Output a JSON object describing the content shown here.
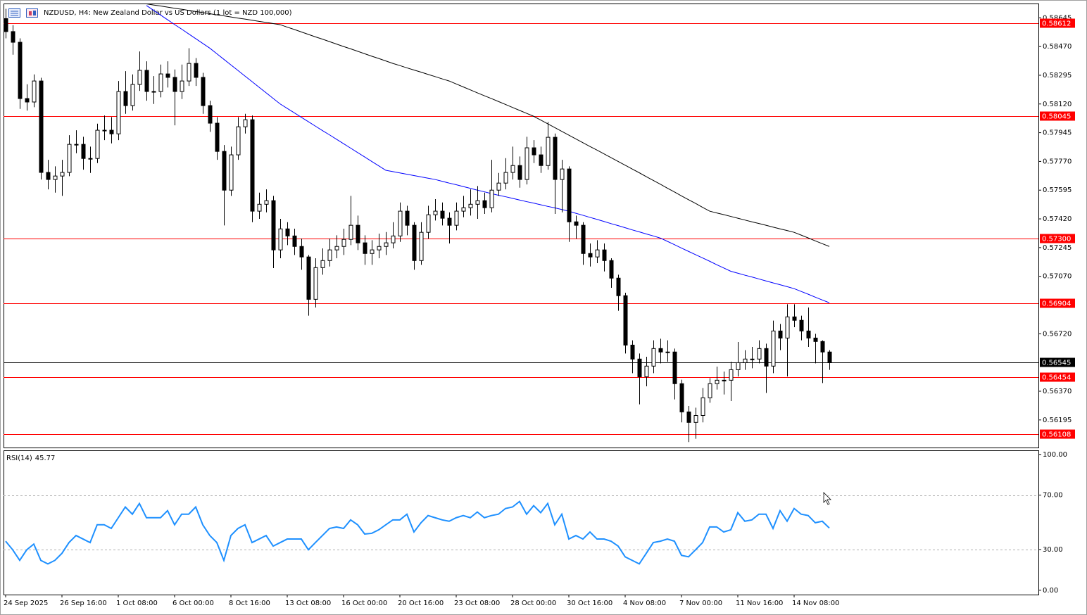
{
  "chart_data": [
    {
      "type": "candlestick",
      "title": "NZDUSD, H4:  New Zealand Dollar vs US Dollars (1 lot = NZD 100,000)",
      "categories": [
        "24 Sep 2025",
        null,
        null,
        null,
        null,
        null,
        null,
        null,
        "26 Sep 16:00",
        null,
        null,
        null,
        null,
        null,
        null,
        null,
        "1 Oct 08:00",
        null,
        null,
        null,
        null,
        null,
        null,
        null,
        "6 Oct 00:00",
        null,
        null,
        null,
        null,
        null,
        null,
        null,
        "8 Oct 16:00",
        null,
        null,
        null,
        null,
        null,
        null,
        null,
        "13 Oct 08:00",
        null,
        null,
        null,
        null,
        null,
        null,
        null,
        "16 Oct 00:00",
        null,
        null,
        null,
        null,
        null,
        null,
        null,
        "20 Oct 16:00",
        null,
        null,
        null,
        null,
        null,
        null,
        null,
        "23 Oct 08:00",
        null,
        null,
        null,
        null,
        null,
        null,
        null,
        "28 Oct 00:00",
        null,
        null,
        null,
        null,
        null,
        null,
        null,
        "30 Oct 16:00",
        null,
        null,
        null,
        null,
        null,
        null,
        null,
        "4 Nov 08:00",
        null,
        null,
        null,
        null,
        null,
        null,
        null,
        "7 Nov 00:00",
        null,
        null,
        null,
        null,
        null,
        null,
        null,
        "11 Nov 16:00",
        null,
        null,
        null,
        null,
        null,
        null,
        null,
        "14 Nov 08:00",
        null,
        null,
        null,
        null,
        null
      ],
      "open": [
        0.5864,
        0.58561,
        0.58496,
        0.58153,
        0.58132,
        0.5826,
        0.57703,
        0.5766,
        0.57681,
        0.57703,
        0.57874,
        0.57874,
        0.57788,
        0.57788,
        0.5796,
        0.5796,
        0.57938,
        0.58196,
        0.5811,
        0.58239,
        0.58325,
        0.58196,
        0.58196,
        0.58303,
        0.58282,
        0.58196,
        0.5826,
        0.58367,
        0.58282,
        0.5811,
        0.58003,
        0.57831,
        0.57595,
        0.5781,
        0.57981,
        0.58024,
        0.57467,
        0.57509,
        0.57531,
        0.57231,
        0.57359,
        0.57316,
        0.57252,
        0.57188,
        0.5693,
        0.57123,
        0.57166,
        0.57231,
        0.57252,
        0.57295,
        0.57381,
        0.57274,
        0.57209,
        0.57231,
        0.57252,
        0.57274,
        0.57316,
        0.57467,
        0.57381,
        0.57166,
        0.57338,
        0.57445,
        0.57467,
        0.57424,
        0.57381,
        0.57467,
        0.57488,
        0.57509,
        0.57531,
        0.57488,
        0.57595,
        0.57638,
        0.57703,
        0.57745,
        0.5766,
        0.57853,
        0.5781,
        0.57745,
        0.57917,
        0.5766,
        0.57724,
        0.57402,
        0.57381,
        0.57209,
        0.57188,
        0.57231,
        0.57166,
        0.57059,
        0.56952,
        0.56651,
        0.56566,
        0.56458,
        0.56523,
        0.5663,
        0.56609,
        0.56609,
        0.56416,
        0.56244,
        0.5618,
        0.56222,
        0.5633,
        0.56416,
        0.56437,
        0.56437,
        0.56501,
        0.56544,
        0.56566,
        0.56566,
        0.5663,
        0.56523,
        0.56737,
        0.56694,
        0.56823,
        0.56802,
        0.56737,
        0.56694,
        0.56673,
        0.56609
      ],
      "high": [
        0.587,
        0.586,
        0.5852,
        0.5824,
        0.583,
        0.5828,
        0.5778,
        0.5774,
        0.5778,
        0.5793,
        0.5796,
        0.5792,
        0.5786,
        0.58,
        0.5805,
        0.5804,
        0.5826,
        0.5832,
        0.583,
        0.5844,
        0.5838,
        0.5829,
        0.5836,
        0.5838,
        0.5833,
        0.5836,
        0.5846,
        0.584,
        0.5831,
        0.5814,
        0.5804,
        0.5787,
        0.5786,
        0.5804,
        0.5806,
        0.5805,
        0.5758,
        0.576,
        0.5756,
        0.5742,
        0.574,
        0.5736,
        0.573,
        0.572,
        0.5718,
        0.5724,
        0.573,
        0.5732,
        0.5736,
        0.5756,
        0.5744,
        0.5732,
        0.5729,
        0.5733,
        0.5734,
        0.574,
        0.5752,
        0.575,
        0.574,
        0.574,
        0.575,
        0.5754,
        0.5752,
        0.5746,
        0.5752,
        0.5756,
        0.576,
        0.5762,
        0.5758,
        0.5778,
        0.577,
        0.5779,
        0.5786,
        0.578,
        0.5792,
        0.579,
        0.5786,
        0.5801,
        0.5794,
        0.5778,
        0.5774,
        0.5744,
        0.574,
        0.5727,
        0.5729,
        0.5727,
        0.5718,
        0.5708,
        0.5697,
        0.5668,
        0.566,
        0.5658,
        0.5668,
        0.5669,
        0.5668,
        0.5663,
        0.5644,
        0.5628,
        0.5627,
        0.5639,
        0.5645,
        0.5652,
        0.5649,
        0.5655,
        0.5667,
        0.5662,
        0.5664,
        0.5668,
        0.5666,
        0.568,
        0.5678,
        0.569,
        0.569,
        0.5683,
        0.5688,
        0.5672,
        0.5668,
        0.5662
      ],
      "low": [
        0.5852,
        0.5842,
        0.5809,
        0.5808,
        0.581,
        0.5766,
        0.576,
        0.5758,
        0.5756,
        0.5768,
        0.5782,
        0.5772,
        0.577,
        0.5776,
        0.579,
        0.5788,
        0.579,
        0.5806,
        0.5808,
        0.582,
        0.5814,
        0.5812,
        0.5816,
        0.5822,
        0.5799,
        0.5815,
        0.5823,
        0.5823,
        0.5806,
        0.5795,
        0.5778,
        0.5738,
        0.5756,
        0.5778,
        0.5794,
        0.574,
        0.5742,
        0.5746,
        0.5712,
        0.5718,
        0.5726,
        0.572,
        0.5711,
        0.5683,
        0.5688,
        0.5708,
        0.5713,
        0.5718,
        0.572,
        0.5726,
        0.5723,
        0.5714,
        0.5714,
        0.5718,
        0.572,
        0.5724,
        0.5728,
        0.5732,
        0.5711,
        0.5714,
        0.573,
        0.5741,
        0.5738,
        0.5727,
        0.5735,
        0.5743,
        0.5744,
        0.5742,
        0.5745,
        0.5746,
        0.5756,
        0.576,
        0.5766,
        0.5761,
        0.5763,
        0.5776,
        0.577,
        0.5772,
        0.5745,
        0.5746,
        0.5728,
        0.573,
        0.5714,
        0.5713,
        0.5715,
        0.571,
        0.57,
        0.5686,
        0.566,
        0.5648,
        0.5629,
        0.564,
        0.5648,
        0.5654,
        0.5655,
        0.5632,
        0.5618,
        0.5606,
        0.5608,
        0.5618,
        0.563,
        0.5638,
        0.5635,
        0.5631,
        0.5646,
        0.565,
        0.5651,
        0.5654,
        0.5636,
        0.5648,
        0.5662,
        0.5646,
        0.5676,
        0.5668,
        0.5664,
        0.5654,
        0.5642,
        0.565
      ],
      "close": [
        0.58561,
        0.58496,
        0.58153,
        0.58132,
        0.5826,
        0.57703,
        0.5766,
        0.57681,
        0.57703,
        0.57874,
        0.57874,
        0.57788,
        0.57788,
        0.5796,
        0.5796,
        0.57938,
        0.58196,
        0.5811,
        0.58239,
        0.58325,
        0.58196,
        0.58196,
        0.58303,
        0.58282,
        0.58196,
        0.5826,
        0.58367,
        0.58282,
        0.5811,
        0.58003,
        0.57831,
        0.57595,
        0.5781,
        0.57981,
        0.58024,
        0.57467,
        0.57509,
        0.57531,
        0.57231,
        0.57359,
        0.57316,
        0.57252,
        0.57188,
        0.5693,
        0.57123,
        0.57166,
        0.57231,
        0.57252,
        0.57295,
        0.57381,
        0.57274,
        0.57209,
        0.57231,
        0.57252,
        0.57274,
        0.57316,
        0.57467,
        0.57381,
        0.57166,
        0.57338,
        0.57445,
        0.57467,
        0.57424,
        0.57381,
        0.57467,
        0.57488,
        0.57509,
        0.57531,
        0.57488,
        0.57595,
        0.57638,
        0.57703,
        0.57745,
        0.5766,
        0.57853,
        0.5781,
        0.57745,
        0.57917,
        0.5766,
        0.57724,
        0.57402,
        0.57381,
        0.57209,
        0.57188,
        0.57231,
        0.57166,
        0.57059,
        0.56952,
        0.56651,
        0.56566,
        0.56458,
        0.56523,
        0.5663,
        0.56609,
        0.56609,
        0.56416,
        0.56244,
        0.5618,
        0.56222,
        0.5633,
        0.56416,
        0.56437,
        0.56437,
        0.56501,
        0.56544,
        0.56566,
        0.56566,
        0.5663,
        0.56523,
        0.56737,
        0.56694,
        0.56823,
        0.56802,
        0.56737,
        0.56694,
        0.56673,
        0.56609,
        0.56545
      ],
      "up_color": "#ffffff",
      "down_color": "#000000",
      "overlays": [
        {
          "color": "#0000ff",
          "values": [
            null,
            null,
            null,
            null,
            null,
            null,
            null,
            null,
            null,
            null,
            null,
            null,
            null,
            null,
            null,
            null,
            null,
            null,
            null,
            null,
            0.5872,
            0.58691,
            0.58662,
            0.58633,
            0.58604,
            0.58576,
            0.58547,
            0.58518,
            0.58489,
            0.5846,
            0.58426,
            0.58392,
            0.58358,
            0.58324,
            0.5829,
            0.58256,
            0.58222,
            0.58188,
            0.58154,
            0.5812,
            0.58093,
            0.58066,
            0.58039,
            0.58012,
            0.57985,
            0.57958,
            0.57932,
            0.57905,
            0.57878,
            0.57851,
            0.57824,
            0.57797,
            0.5777,
            0.57743,
            0.57716,
            0.57708,
            0.577,
            0.57692,
            0.57684,
            0.57676,
            0.57668,
            0.5766,
            0.57649,
            0.57638,
            0.57628,
            0.57617,
            0.57606,
            0.57595,
            0.57585,
            0.57574,
            0.57564,
            0.57555,
            0.57545,
            0.57535,
            0.57525,
            0.57516,
            0.57506,
            0.57496,
            0.57487,
            0.57477,
            0.57467,
            0.57454,
            0.57442,
            0.57429,
            0.57417,
            0.57404,
            0.57391,
            0.57379,
            0.57366,
            0.57353,
            0.57341,
            0.57328,
            0.57316,
            0.57303,
            0.57283,
            0.57263,
            0.57242,
            0.57222,
            0.57202,
            0.57182,
            0.57162,
            0.57141,
            0.57121,
            0.57101,
            0.57089,
            0.57077,
            0.57066,
            0.57054,
            0.57042,
            0.5703,
            0.57019,
            0.57007,
            0.56995,
            0.56978,
            0.56961,
            0.56943,
            0.56926,
            0.56909
          ]
        },
        {
          "color": "#000000",
          "values": [
            null,
            null,
            null,
            null,
            null,
            null,
            null,
            null,
            null,
            null,
            null,
            null,
            null,
            null,
            null,
            null,
            null,
            null,
            null,
            null,
            0.5873,
            0.58723,
            0.58717,
            0.5871,
            0.58703,
            0.58697,
            0.5869,
            0.58683,
            0.58677,
            0.5867,
            0.58663,
            0.58657,
            0.5865,
            0.58643,
            0.58637,
            0.5863,
            0.58623,
            0.58617,
            0.5861,
            0.58603,
            0.58588,
            0.58574,
            0.58559,
            0.58544,
            0.58529,
            0.58515,
            0.585,
            0.58485,
            0.5847,
            0.58456,
            0.58441,
            0.58426,
            0.58411,
            0.58397,
            0.58382,
            0.58367,
            0.58354,
            0.5834,
            0.58327,
            0.58314,
            0.583,
            0.58287,
            0.58273,
            0.5826,
            0.58242,
            0.58224,
            0.58206,
            0.58188,
            0.5817,
            0.58153,
            0.58135,
            0.58117,
            0.58099,
            0.58081,
            0.58063,
            0.58045,
            0.58022,
            0.57999,
            0.57976,
            0.57953,
            0.5793,
            0.57907,
            0.57884,
            0.57861,
            0.57839,
            0.57816,
            0.57793,
            0.5777,
            0.57747,
            0.57724,
            0.57701,
            0.57677,
            0.57654,
            0.57631,
            0.57607,
            0.57584,
            0.5756,
            0.57537,
            0.57514,
            0.5749,
            0.57467,
            0.57456,
            0.57446,
            0.57435,
            0.57424,
            0.57413,
            0.57402,
            0.57392,
            0.57381,
            0.5737,
            0.57359,
            0.57349,
            0.57338,
            0.57321,
            0.57304,
            0.57286,
            0.57269,
            0.57252
          ]
        }
      ],
      "levels": [
        {
          "value": 0.58612,
          "label": "0.58612"
        },
        {
          "value": 0.58045,
          "label": "0.58045"
        },
        {
          "value": 0.573,
          "label": "0.57300"
        },
        {
          "value": 0.56904,
          "label": "0.56904"
        },
        {
          "value": 0.56454,
          "label": "0.56454"
        },
        {
          "value": 0.56108,
          "label": "0.56108"
        }
      ],
      "level_color": "#ff0000",
      "last_price": {
        "value": 0.56545,
        "label": "0.56545"
      },
      "ylim": [
        0.56027,
        0.58732
      ],
      "yticks": [
        {
          "value": 0.58645,
          "label": "0.58645"
        },
        {
          "value": 0.5847,
          "label": "0.58470"
        },
        0.58295,
        {
          "value": 0.5812,
          "label": "0.58120"
        },
        0.57945,
        {
          "value": 0.5777,
          "label": "0.57770"
        },
        0.57595,
        {
          "value": 0.5742,
          "label": "0.57420"
        },
        0.57245,
        {
          "value": 0.5707,
          "label": "0.57070"
        },
        {
          "value": 0.5672,
          "label": "0.56720"
        },
        {
          "value": 0.5637,
          "label": "0.56370"
        },
        0.56195
      ]
    },
    {
      "type": "line",
      "title": "RSI(14)",
      "color": "#1e90ff",
      "values": [
        36.1,
        29.8,
        22.0,
        29.8,
        34.0,
        22.0,
        19.4,
        22.0,
        27.2,
        35.1,
        40.3,
        37.7,
        35.1,
        48.2,
        48.2,
        45.5,
        53.4,
        61.3,
        56.0,
        63.9,
        53.4,
        53.4,
        53.4,
        58.6,
        48.2,
        56.0,
        56.0,
        61.3,
        48.2,
        40.3,
        35.1,
        22.0,
        40.3,
        45.5,
        48.2,
        35.1,
        37.7,
        40.3,
        32.5,
        35.1,
        37.7,
        37.7,
        37.7,
        29.8,
        35.1,
        40.3,
        45.5,
        46.6,
        45.5,
        51.8,
        48.2,
        41.4,
        41.9,
        44.5,
        48.2,
        51.8,
        51.8,
        56.0,
        42.9,
        49.7,
        55.0,
        53.4,
        51.8,
        50.8,
        53.4,
        55.0,
        53.4,
        57.6,
        53.4,
        55.0,
        56.0,
        60.2,
        61.3,
        65.4,
        56.0,
        62.3,
        57.1,
        63.9,
        48.2,
        56.0,
        37.7,
        40.3,
        37.7,
        42.9,
        37.7,
        37.7,
        36.1,
        32.5,
        24.6,
        22.0,
        19.4,
        27.2,
        35.1,
        36.1,
        37.7,
        36.1,
        25.7,
        24.6,
        29.8,
        35.1,
        46.6,
        46.6,
        42.9,
        44.5,
        57.1,
        50.8,
        51.8,
        56.0,
        56.0,
        45.5,
        58.6,
        50.8,
        60.2,
        56.0,
        55.0,
        49.7,
        50.8,
        45.77
      ],
      "ylim": [
        -3.2,
        103
      ],
      "yticks": [
        {
          "value": 100,
          "label": "100.00"
        },
        {
          "value": 70,
          "label": "70.00"
        },
        {
          "value": 30,
          "label": "30.00"
        },
        {
          "value": 0,
          "label": "0.00"
        }
      ],
      "dashed_levels": [
        70,
        30
      ]
    }
  ]
}
